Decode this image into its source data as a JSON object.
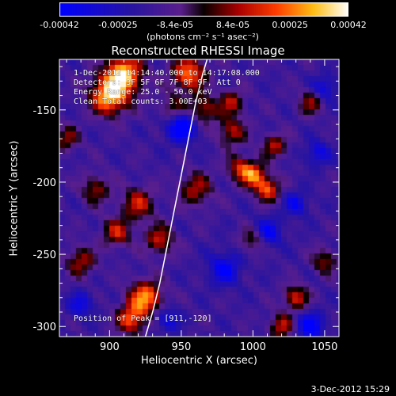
{
  "chart_data": {
    "type": "heatmap",
    "title": "Reconstructed RHESSI Image",
    "xlabel": "Heliocentric X (arcsec)",
    "ylabel": "Heliocentric Y (arcsec)",
    "xlim": [
      865,
      1060
    ],
    "ylim": [
      -307,
      -115
    ],
    "x_ticks": [
      "900",
      "950",
      "1000",
      "1050"
    ],
    "x_tick_values": [
      900,
      950,
      1000,
      1050
    ],
    "y_ticks": [
      "-150",
      "-200",
      "-250",
      "-300"
    ],
    "y_tick_values": [
      -150,
      -200,
      -250,
      -300
    ],
    "colorbar": {
      "range": [
        -0.00042,
        0.00042
      ],
      "tick_labels": [
        "-0.00042",
        "-0.00025",
        "-8.4e-05",
        "8.4e-05",
        "0.00025",
        "0.00042"
      ],
      "tick_values": [
        -0.00042,
        -0.00025,
        -8.4e-05,
        8.4e-05,
        0.00025,
        0.00042
      ],
      "units": "(photons cm⁻² s⁻¹ asec⁻²)"
    },
    "annotations": {
      "time_range": "1-Dec-2012 14:14:40.000 to 14:17:08.000",
      "detectors": "Detectors: 3F 5F 6F 7F 8F 9F, Att 0",
      "energy": "Energy Range: 25.0 - 50.0 keV",
      "clean": "Clean    Total counts: 3.00E+03",
      "peak": "Position of Peak = [911,-120]"
    },
    "peak_position": [
      911,
      -120
    ],
    "limb_curve": [
      [
        925,
        -307
      ],
      [
        930,
        -290
      ],
      [
        935,
        -270
      ],
      [
        940,
        -245
      ],
      [
        945,
        -220
      ],
      [
        950,
        -195
      ],
      [
        955,
        -170
      ],
      [
        960,
        -145
      ],
      [
        965,
        -125
      ],
      [
        968,
        -115
      ]
    ],
    "bright_sources": [
      {
        "x": 900,
        "y": -140,
        "intensity": 1.0,
        "r": 9
      },
      {
        "x": 910,
        "y": -125,
        "intensity": 0.95,
        "r": 9
      },
      {
        "x": 955,
        "y": -125,
        "intensity": 0.8,
        "r": 8
      },
      {
        "x": 965,
        "y": -150,
        "intensity": 0.55,
        "r": 7
      },
      {
        "x": 945,
        "y": -150,
        "intensity": 0.5,
        "r": 7
      },
      {
        "x": 1000,
        "y": -195,
        "intensity": 0.75,
        "r": 6
      },
      {
        "x": 1010,
        "y": -205,
        "intensity": 0.7,
        "r": 6
      },
      {
        "x": 990,
        "y": -190,
        "intensity": 0.5,
        "r": 6
      },
      {
        "x": 920,
        "y": -215,
        "intensity": 0.55,
        "r": 8
      },
      {
        "x": 960,
        "y": -205,
        "intensity": 0.5,
        "r": 8
      },
      {
        "x": 935,
        "y": -240,
        "intensity": 0.55,
        "r": 7
      },
      {
        "x": 905,
        "y": -235,
        "intensity": 0.55,
        "r": 7
      },
      {
        "x": 890,
        "y": -205,
        "intensity": 0.45,
        "r": 7
      },
      {
        "x": 880,
        "y": -255,
        "intensity": 0.5,
        "r": 7
      },
      {
        "x": 925,
        "y": -280,
        "intensity": 0.85,
        "r": 8
      },
      {
        "x": 915,
        "y": -295,
        "intensity": 0.7,
        "r": 7
      },
      {
        "x": 1015,
        "y": -175,
        "intensity": 0.5,
        "r": 6
      },
      {
        "x": 985,
        "y": -165,
        "intensity": 0.5,
        "r": 7
      },
      {
        "x": 1040,
        "y": -145,
        "intensity": 0.45,
        "r": 6
      },
      {
        "x": 1030,
        "y": -280,
        "intensity": 0.6,
        "r": 6
      },
      {
        "x": 1050,
        "y": -255,
        "intensity": 0.45,
        "r": 6
      },
      {
        "x": 1020,
        "y": -300,
        "intensity": 0.55,
        "r": 6
      },
      {
        "x": 1000,
        "y": -240,
        "intensity": 0.45,
        "r": 6
      },
      {
        "x": 870,
        "y": -170,
        "intensity": 0.45,
        "r": 6
      },
      {
        "x": 985,
        "y": -145,
        "intensity": 0.5,
        "r": 6
      }
    ],
    "dark_sources": [
      {
        "x": 950,
        "y": -160,
        "intensity": 0.9,
        "r": 8
      },
      {
        "x": 1010,
        "y": -235,
        "intensity": 0.6,
        "r": 7
      },
      {
        "x": 980,
        "y": -260,
        "intensity": 0.6,
        "r": 8
      },
      {
        "x": 1040,
        "y": -300,
        "intensity": 0.7,
        "r": 7
      },
      {
        "x": 1045,
        "y": -180,
        "intensity": 0.5,
        "r": 6
      },
      {
        "x": 940,
        "y": -295,
        "intensity": 0.5,
        "r": 6
      },
      {
        "x": 880,
        "y": -285,
        "intensity": 0.5,
        "r": 6
      },
      {
        "x": 1030,
        "y": -215,
        "intensity": 0.5,
        "r": 6
      },
      {
        "x": 1050,
        "y": -135,
        "intensity": 0.5,
        "r": 6
      }
    ],
    "grid": false
  },
  "footer": {
    "date": "3-Dec-2012 15:29"
  }
}
